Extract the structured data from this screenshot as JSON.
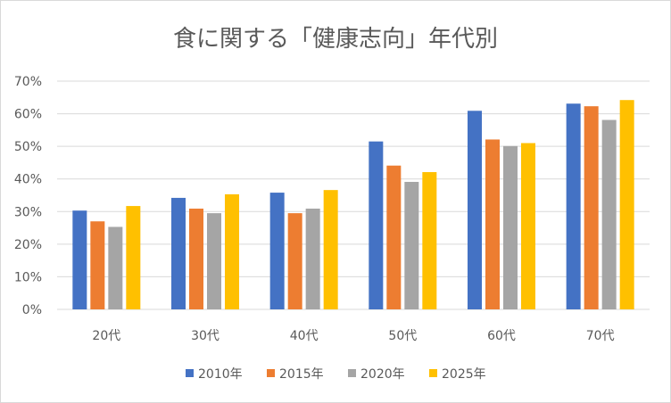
{
  "chart_data": {
    "type": "bar",
    "title": "食に関する「健康志向」年代別",
    "xlabel": "",
    "ylabel": "",
    "categories": [
      "20代",
      "30代",
      "40代",
      "50代",
      "60代",
      "70代"
    ],
    "ylim": [
      0,
      70
    ],
    "yticks": [
      "0%",
      "10%",
      "20%",
      "30%",
      "40%",
      "50%",
      "60%",
      "70%"
    ],
    "grid": true,
    "legend_position": "bottom",
    "series": [
      {
        "name": "2010年",
        "color": "#4472C4",
        "values": [
          30.3,
          34.2,
          35.8,
          51.5,
          60.9,
          63.1
        ]
      },
      {
        "name": "2015年",
        "color": "#ED7D31",
        "values": [
          27.0,
          30.9,
          29.5,
          44.1,
          52.1,
          62.3
        ]
      },
      {
        "name": "2020年",
        "color": "#A5A5A5",
        "values": [
          25.3,
          29.5,
          30.9,
          39.1,
          50.1,
          58.1
        ]
      },
      {
        "name": "2025年",
        "color": "#FFC000",
        "values": [
          31.7,
          35.3,
          36.6,
          42.1,
          51.0,
          64.2
        ]
      }
    ]
  }
}
